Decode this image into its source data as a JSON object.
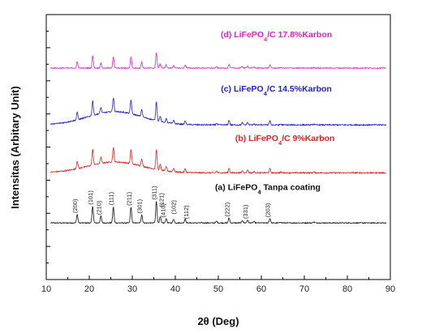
{
  "chart_data": {
    "type": "line",
    "xlabel": "2θ (Deg)",
    "ylabel": "Intensitas (Arbitary Unit)",
    "xlim": [
      10,
      90
    ],
    "x_ticks": [
      10,
      20,
      30,
      40,
      50,
      60,
      70,
      80,
      90
    ],
    "y_ticks_labeled": false,
    "grid": false,
    "peaks": [
      {
        "x": 17.2,
        "h": 0.35,
        "hkl": "(200)"
      },
      {
        "x": 20.8,
        "h": 0.7,
        "hkl": "(101)"
      },
      {
        "x": 22.7,
        "h": 0.28,
        "hkl": "(210)"
      },
      {
        "x": 25.6,
        "h": 0.66,
        "hkl": "(111)"
      },
      {
        "x": 29.7,
        "h": 0.65,
        "hkl": "(211)"
      },
      {
        "x": 32.2,
        "h": 0.34,
        "hkl": "(301)"
      },
      {
        "x": 35.6,
        "h": 0.9,
        "hkl": "(311)"
      },
      {
        "x": 36.5,
        "h": 0.25,
        "hkl": "(121)"
      },
      {
        "x": 37.9,
        "h": 0.19,
        "hkl": "(410)"
      },
      {
        "x": 39.6,
        "h": 0.16,
        "hkl": "(102)"
      },
      {
        "x": 42.3,
        "h": 0.17,
        "hkl": "(112)"
      },
      {
        "x": 49.6,
        "h": 0.07,
        "hkl": ""
      },
      {
        "x": 52.5,
        "h": 0.21,
        "hkl": "(222)"
      },
      {
        "x": 55.6,
        "h": 0.1,
        "hkl": ""
      },
      {
        "x": 56.8,
        "h": 0.12,
        "hkl": "(331)"
      },
      {
        "x": 58.3,
        "h": 0.06,
        "hkl": ""
      },
      {
        "x": 62.0,
        "h": 0.18,
        "hkl": "(203)"
      },
      {
        "x": 64.5,
        "h": 0.04,
        "hkl": ""
      },
      {
        "x": 72.2,
        "h": 0.04,
        "hkl": ""
      }
    ],
    "series": [
      {
        "name": "(a) LiFePO4 Tanpa coating",
        "label_parts": [
          "(a) LiFePO",
          "4",
          " Tanpa coating"
        ],
        "color": "#111111",
        "baseline": 2.35,
        "scale": 1.0,
        "hump": 0.0,
        "noise": 0.018,
        "label_xy": [
          61.5,
          3.72
        ]
      },
      {
        "name": "(b) LiFePO4/C 9%Karbon",
        "label_parts": [
          "(b) LiFePO",
          "4",
          "/C 9%Karbon"
        ],
        "color": "#e02020",
        "baseline": 4.43,
        "scale": 0.92,
        "hump": 0.45,
        "noise": 0.025,
        "label_xy": [
          65.5,
          5.75
        ]
      },
      {
        "name": "(c) LiFePO4/C 14.5%Karbon",
        "label_parts": [
          "(c) LiFePO",
          "4",
          "/C 14.5%Karbon"
        ],
        "color": "#2020c8",
        "baseline": 6.42,
        "scale": 0.88,
        "hump": 0.55,
        "noise": 0.025,
        "label_xy": [
          63.5,
          7.8
        ]
      },
      {
        "name": "(d) LiFePO4/C 17.8%Karbon",
        "label_parts": [
          "(d) LiFePO",
          "4",
          "/C 17.8%Karbon"
        ],
        "color": "#e020c8",
        "baseline": 8.78,
        "scale": 0.72,
        "hump": 0.0,
        "noise": 0.018,
        "label_xy": [
          63.5,
          10.05
        ]
      }
    ]
  }
}
